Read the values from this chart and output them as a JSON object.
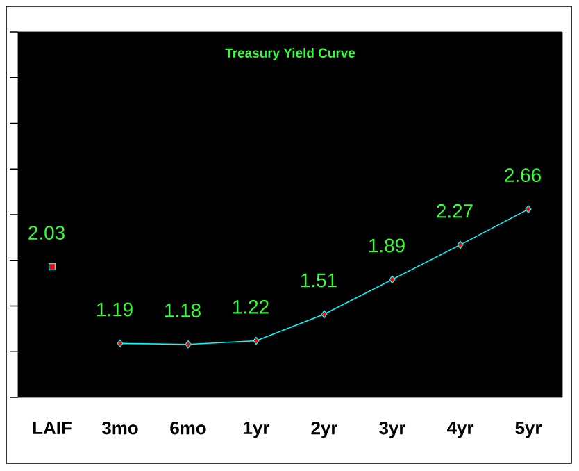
{
  "chart_data": {
    "type": "line",
    "title": "Treasury Yield Curve",
    "categories": [
      "LAIF",
      "3mo",
      "6mo",
      "1yr",
      "2yr",
      "3yr",
      "4yr",
      "5yr"
    ],
    "series": [
      {
        "type": "scatter",
        "color": "#00ffff",
        "marker": "square",
        "values": [
          2.03,
          null,
          null,
          null,
          null,
          null,
          null,
          null
        ]
      },
      {
        "color": "#00ffff",
        "marker": "diamond",
        "values": [
          null,
          1.19,
          1.18,
          1.22,
          1.51,
          1.89,
          2.27,
          2.66
        ]
      }
    ],
    "ylim": [
      0.6,
      4.6
    ],
    "yticks": [
      {
        "value": 0.6,
        "label": null
      },
      {
        "value": 1.1,
        "label": null
      },
      {
        "value": 1.6,
        "label": null
      },
      {
        "value": 2.1,
        "label": null
      },
      {
        "value": 2.6,
        "label": null
      },
      {
        "value": 3.1,
        "label": null
      },
      {
        "value": 3.6,
        "label": null
      },
      {
        "value": 4.1,
        "label": null
      },
      {
        "value": 4.6,
        "label": null
      }
    ],
    "tick_labels": "x",
    "data_labels": true
  }
}
